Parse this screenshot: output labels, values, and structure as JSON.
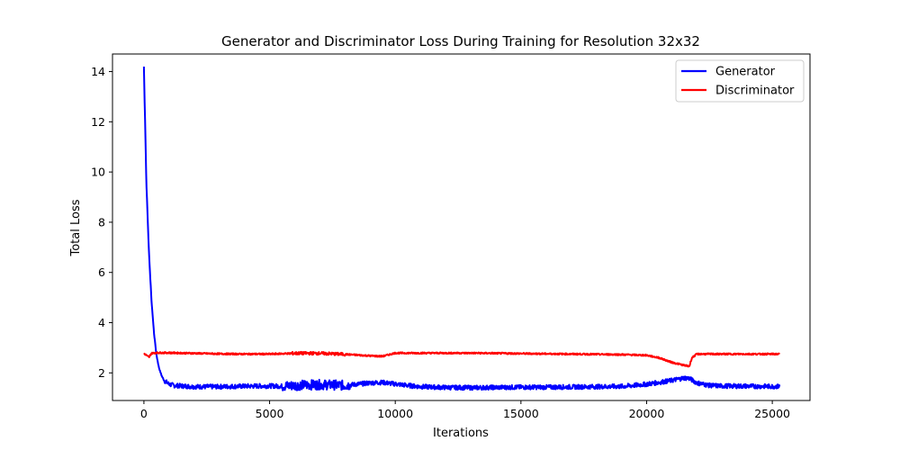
{
  "chart_data": {
    "type": "line",
    "title": "Generator and Discriminator Loss During Training for Resolution 32x32",
    "xlabel": "Iterations",
    "ylabel": "Total Loss",
    "xlim": [
      -1250,
      26500
    ],
    "ylim": [
      0.9,
      14.7
    ],
    "xticks": [
      0,
      5000,
      10000,
      15000,
      20000,
      25000
    ],
    "yticks": [
      2,
      4,
      6,
      8,
      10,
      12,
      14
    ],
    "grid": false,
    "legend": "top-right",
    "series": [
      {
        "name": "Generator",
        "color": "#0000ff",
        "noise_amplitude": 0.09,
        "x": [
          0,
          100,
          200,
          300,
          400,
          500,
          600,
          700,
          800,
          1000,
          1200,
          1500,
          2000,
          3000,
          4000,
          5000,
          5500,
          6000,
          6500,
          7000,
          7500,
          8000,
          8500,
          9000,
          9500,
          9800,
          10500,
          11000,
          12000,
          13000,
          14000,
          15000,
          16000,
          17000,
          18000,
          19000,
          19500,
          20000,
          20500,
          21000,
          21500,
          21700,
          22000,
          22500,
          23000,
          24000,
          25000,
          25300
        ],
        "y": [
          14.2,
          9.5,
          6.8,
          4.9,
          3.6,
          2.7,
          2.2,
          1.9,
          1.7,
          1.55,
          1.5,
          1.48,
          1.45,
          1.45,
          1.47,
          1.48,
          1.47,
          1.5,
          1.52,
          1.53,
          1.52,
          1.5,
          1.55,
          1.6,
          1.62,
          1.58,
          1.5,
          1.45,
          1.42,
          1.41,
          1.42,
          1.43,
          1.43,
          1.44,
          1.45,
          1.46,
          1.5,
          1.55,
          1.62,
          1.7,
          1.8,
          1.78,
          1.6,
          1.5,
          1.48,
          1.47,
          1.46,
          1.46
        ]
      },
      {
        "name": "Discriminator",
        "color": "#ff0000",
        "noise_amplitude": 0.03,
        "x": [
          0,
          100,
          200,
          300,
          500,
          1000,
          2000,
          3000,
          4000,
          5000,
          6000,
          7000,
          8000,
          9000,
          9500,
          10000,
          11000,
          12000,
          13000,
          14000,
          15000,
          16000,
          17000,
          18000,
          19000,
          20000,
          20500,
          21000,
          21500,
          21700,
          21800,
          22000,
          23000,
          24000,
          25000,
          25300
        ],
        "y": [
          2.78,
          2.7,
          2.62,
          2.78,
          2.8,
          2.8,
          2.78,
          2.76,
          2.75,
          2.75,
          2.78,
          2.78,
          2.74,
          2.68,
          2.66,
          2.79,
          2.79,
          2.79,
          2.79,
          2.78,
          2.77,
          2.76,
          2.75,
          2.74,
          2.73,
          2.7,
          2.6,
          2.42,
          2.3,
          2.26,
          2.6,
          2.75,
          2.75,
          2.75,
          2.75,
          2.75
        ]
      }
    ]
  }
}
